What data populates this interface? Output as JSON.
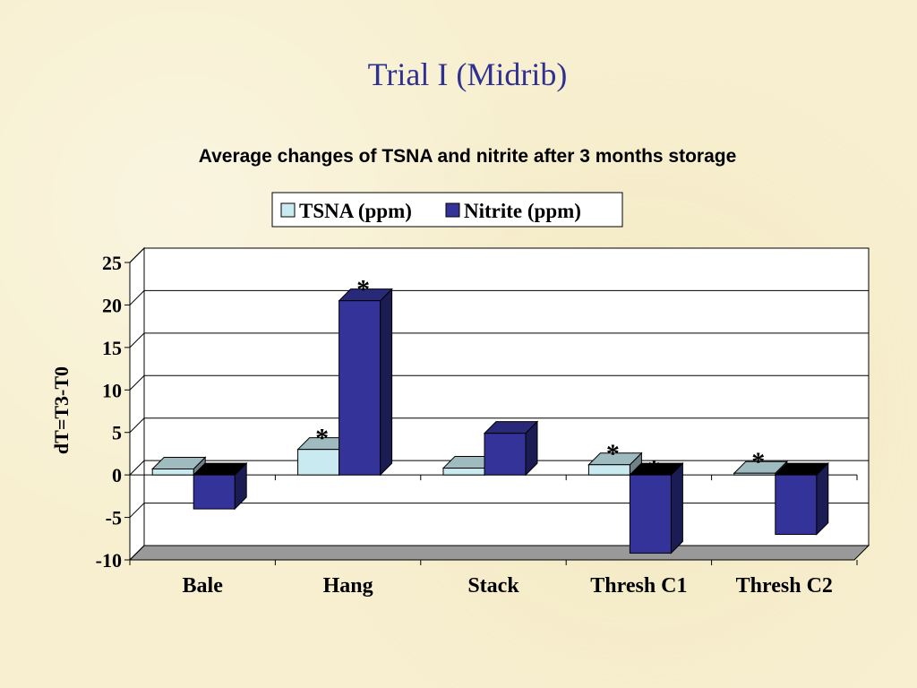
{
  "slide": {
    "title": "Trial I (Midrib)"
  },
  "chart_data": {
    "type": "bar",
    "title": "Average changes of TSNA and nitrite after 3 months storage",
    "xlabel": "",
    "ylabel": "dT=T3-T0",
    "ylim": [
      -10,
      25
    ],
    "yticks": [
      25,
      20,
      15,
      10,
      5,
      0,
      -5,
      -10
    ],
    "grid": true,
    "legend_position": "top",
    "three_d": true,
    "categories": [
      "Bale",
      "Hang",
      "Stack",
      "Thresh C1",
      "Thresh C2"
    ],
    "series": [
      {
        "name": "TSNA (ppm)",
        "color": "#c8eaf0",
        "values": [
          0.7,
          3.0,
          0.8,
          1.2,
          0.2
        ],
        "significant": [
          false,
          true,
          false,
          true,
          true
        ]
      },
      {
        "name": "Nitrite (ppm)",
        "color": "#333399",
        "values": [
          -4.0,
          20.5,
          4.9,
          -9.2,
          -7.0
        ],
        "significant": [
          false,
          true,
          false,
          true,
          false
        ]
      }
    ],
    "annotation_symbol": "*"
  }
}
